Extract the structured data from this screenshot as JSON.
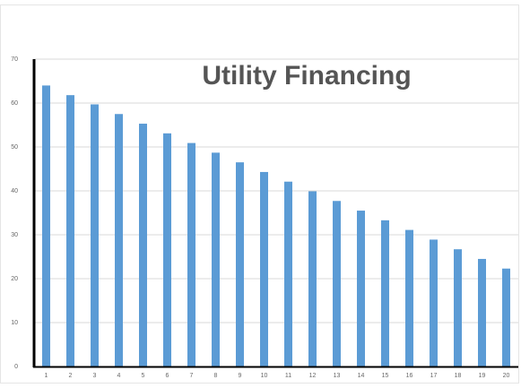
{
  "chart_data": {
    "type": "bar",
    "title": "Utility Financing",
    "categories": [
      "1",
      "2",
      "3",
      "4",
      "5",
      "6",
      "7",
      "8",
      "9",
      "10",
      "11",
      "12",
      "13",
      "14",
      "15",
      "16",
      "17",
      "18",
      "19",
      "20"
    ],
    "values": [
      64,
      61.8,
      59.7,
      57.5,
      55.3,
      53.1,
      50.9,
      48.7,
      46.5,
      44.3,
      42.1,
      39.9,
      37.7,
      35.5,
      33.3,
      31.1,
      28.9,
      26.7,
      24.5,
      22.3
    ],
    "color": "#5b9bd5",
    "ylim": [
      0,
      70
    ],
    "yticks": [
      0,
      10,
      20,
      30,
      40,
      50,
      60,
      70
    ],
    "grid": true
  }
}
